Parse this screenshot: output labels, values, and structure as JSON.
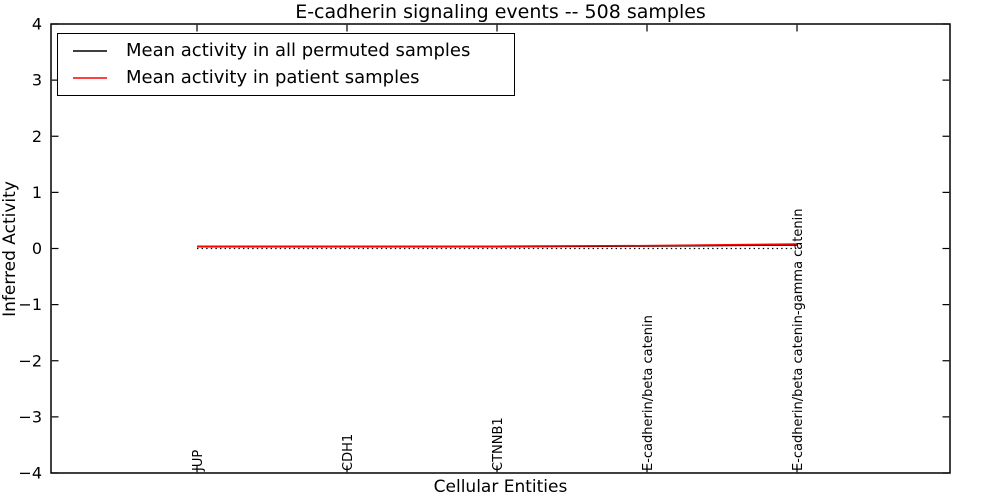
{
  "chart_data": {
    "type": "line",
    "title": "E-cadherin signaling events -- 508 samples",
    "xlabel": "Cellular Entities",
    "ylabel": "Inferred Activity",
    "ylim": [
      -4,
      4
    ],
    "yticks": [
      4,
      3,
      2,
      1,
      0,
      -1,
      -2,
      -3,
      -4
    ],
    "ytick_labels": [
      "4",
      "3",
      "2",
      "1",
      "0",
      "−1",
      "−2",
      "−3",
      "−4"
    ],
    "categories": [
      "JUP",
      "CDH1",
      "CTNNB1",
      "E-cadherin/beta catenin",
      "E-cadherin/beta catenin-gamma catenin"
    ],
    "series": [
      {
        "name": "Mean activity in all permuted samples",
        "color": "#000000",
        "style": "solid",
        "values": [
          0.03,
          0.03,
          0.03,
          0.04,
          0.06
        ]
      },
      {
        "name": "Mean activity in patient samples",
        "color": "#ff0000",
        "style": "solid",
        "values": [
          0.04,
          0.04,
          0.04,
          0.05,
          0.08
        ]
      }
    ],
    "zero_line": {
      "value": 0,
      "color": "#000000",
      "style": "dotted"
    },
    "legend": {
      "position": "upper left"
    },
    "grid": false,
    "frame_color": "#000000",
    "background": "#ffffff"
  }
}
